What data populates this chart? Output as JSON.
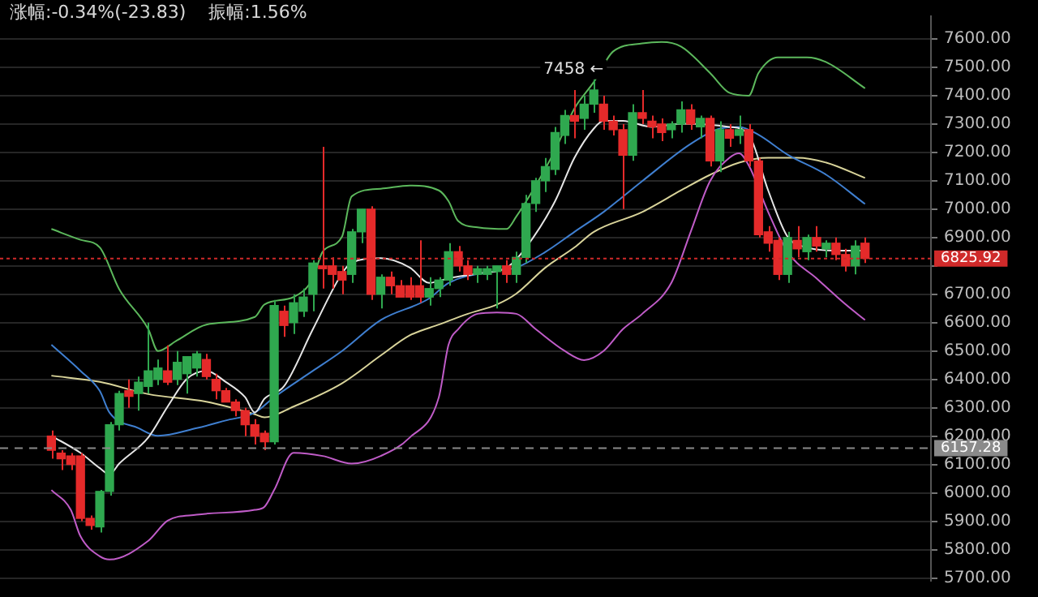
{
  "chart_data": {
    "type": "candlestick",
    "title": "涨幅:-0.34%(-23.83)",
    "subtitle": "振幅:1.56%",
    "annotations": [
      "7458 ←"
    ],
    "categories": [
      null,
      null,
      null,
      null,
      null,
      null,
      null,
      null,
      null,
      null,
      null,
      null,
      null,
      null,
      null,
      null,
      null,
      null,
      null,
      null,
      null,
      null,
      null,
      null,
      null,
      null,
      null,
      null,
      null,
      null,
      null,
      null,
      null,
      null,
      null,
      null,
      null,
      null,
      null,
      null,
      null,
      null,
      null,
      null,
      null,
      null,
      null,
      null,
      null,
      null,
      null,
      null,
      null,
      null,
      null,
      null,
      null,
      null,
      null,
      null,
      null,
      null,
      null,
      null,
      null,
      null,
      null,
      null,
      null,
      null,
      null,
      null,
      null,
      null,
      null,
      null,
      null,
      null,
      null,
      null,
      null,
      null,
      null,
      null,
      null
    ],
    "ohlc": [
      [
        6200,
        6220,
        6120,
        6150
      ],
      [
        6140,
        6150,
        6080,
        6120
      ],
      [
        6130,
        6140,
        6080,
        6100
      ],
      [
        6130,
        6140,
        5900,
        5910
      ],
      [
        5910,
        5920,
        5870,
        5885
      ],
      [
        5880,
        6010,
        5860,
        6005
      ],
      [
        6005,
        6250,
        5990,
        6240
      ],
      [
        6240,
        6360,
        6220,
        6350
      ],
      [
        6360,
        6400,
        6300,
        6340
      ],
      [
        6350,
        6410,
        6290,
        6390
      ],
      [
        6375,
        6600,
        6350,
        6430
      ],
      [
        6400,
        6470,
        6380,
        6440
      ],
      [
        6430,
        6520,
        6380,
        6390
      ],
      [
        6400,
        6500,
        6380,
        6460
      ],
      [
        6420,
        6480,
        6350,
        6480
      ],
      [
        6440,
        6500,
        6410,
        6490
      ],
      [
        6470,
        6490,
        6400,
        6410
      ],
      [
        6400,
        6420,
        6330,
        6360
      ],
      [
        6360,
        6370,
        6320,
        6320
      ],
      [
        6320,
        6330,
        6270,
        6290
      ],
      [
        6290,
        6300,
        6200,
        6240
      ],
      [
        6240,
        6260,
        6170,
        6200
      ],
      [
        6210,
        6220,
        6150,
        6180
      ],
      [
        6180,
        6680,
        6170,
        6660
      ],
      [
        6640,
        6660,
        6550,
        6590
      ],
      [
        6600,
        6700,
        6560,
        6670
      ],
      [
        6640,
        6720,
        6620,
        6690
      ],
      [
        6700,
        6820,
        6640,
        6810
      ],
      [
        6800,
        7220,
        6720,
        6790
      ],
      [
        6800,
        6830,
        6720,
        6770
      ],
      [
        6780,
        6800,
        6700,
        6750
      ],
      [
        6770,
        6930,
        6740,
        6920
      ],
      [
        6920,
        7000,
        6880,
        7000
      ],
      [
        7000,
        7010,
        6680,
        6700
      ],
      [
        6700,
        6770,
        6650,
        6760
      ],
      [
        6760,
        6780,
        6700,
        6730
      ],
      [
        6730,
        6750,
        6690,
        6690
      ],
      [
        6730,
        6760,
        6680,
        6690
      ],
      [
        6730,
        6890,
        6670,
        6690
      ],
      [
        6690,
        6760,
        6660,
        6720
      ],
      [
        6720,
        6760,
        6690,
        6750
      ],
      [
        6750,
        6880,
        6730,
        6850
      ],
      [
        6850,
        6870,
        6780,
        6800
      ],
      [
        6800,
        6820,
        6750,
        6770
      ],
      [
        6770,
        6800,
        6740,
        6790
      ],
      [
        6770,
        6800,
        6750,
        6790
      ],
      [
        6780,
        6800,
        6650,
        6800
      ],
      [
        6800,
        6820,
        6740,
        6770
      ],
      [
        6770,
        6850,
        6740,
        6830
      ],
      [
        6830,
        7050,
        6810,
        7020
      ],
      [
        7020,
        7110,
        6990,
        7100
      ],
      [
        7100,
        7180,
        7060,
        7150
      ],
      [
        7140,
        7290,
        7120,
        7270
      ],
      [
        7260,
        7350,
        7230,
        7330
      ],
      [
        7330,
        7420,
        7250,
        7310
      ],
      [
        7320,
        7400,
        7280,
        7370
      ],
      [
        7370,
        7458,
        7340,
        7420
      ],
      [
        7370,
        7400,
        7280,
        7310
      ],
      [
        7310,
        7330,
        7260,
        7280
      ],
      [
        7280,
        7300,
        7000,
        7190
      ],
      [
        7190,
        7370,
        7170,
        7340
      ],
      [
        7340,
        7420,
        7300,
        7320
      ],
      [
        7310,
        7330,
        7250,
        7290
      ],
      [
        7300,
        7320,
        7240,
        7270
      ],
      [
        7280,
        7310,
        7250,
        7300
      ],
      [
        7300,
        7380,
        7270,
        7350
      ],
      [
        7350,
        7370,
        7280,
        7300
      ],
      [
        7290,
        7330,
        7250,
        7320
      ],
      [
        7320,
        7330,
        7150,
        7170
      ],
      [
        7170,
        7310,
        7130,
        7280
      ],
      [
        7280,
        7300,
        7220,
        7250
      ],
      [
        7260,
        7330,
        7230,
        7280
      ],
      [
        7280,
        7300,
        7150,
        7170
      ],
      [
        7170,
        7180,
        6900,
        6910
      ],
      [
        6920,
        6940,
        6850,
        6880
      ],
      [
        6890,
        6900,
        6750,
        6770
      ],
      [
        6770,
        6920,
        6740,
        6900
      ],
      [
        6890,
        6940,
        6830,
        6860
      ],
      [
        6850,
        6910,
        6820,
        6900
      ],
      [
        6900,
        6940,
        6850,
        6870
      ],
      [
        6860,
        6890,
        6830,
        6880
      ],
      [
        6880,
        6900,
        6820,
        6840
      ],
      [
        6840,
        6860,
        6780,
        6800
      ],
      [
        6800,
        6890,
        6770,
        6870
      ],
      [
        6880,
        6900,
        6810,
        6826
      ]
    ],
    "series": [
      {
        "type": "line",
        "color": "#5cb85c",
        "values": [
          6930,
          null,
          null,
          6892,
          null,
          6865,
          null,
          6718,
          null,
          null,
          6577,
          6500,
          null,
          6538,
          null,
          null,
          6593,
          null,
          null,
          null,
          null,
          6620,
          6664,
          null,
          null,
          6690,
          null,
          6756,
          6850,
          null,
          6903,
          7045,
          null,
          null,
          7072,
          null,
          null,
          7083,
          null,
          null,
          7066,
          7028,
          6958,
          null,
          6936,
          null,
          null,
          6930,
          6974,
          null,
          7083,
          null,
          7208,
          null,
          7355,
          null,
          7448,
          null,
          7556,
          null,
          null,
          7584,
          null,
          7589,
          null,
          7573,
          null,
          null,
          7480,
          null,
          7410,
          null,
          7400,
          7480,
          null,
          7535,
          null,
          null,
          7535,
          null,
          7518,
          null,
          null,
          null,
          7426
        ]
      },
      {
        "type": "line",
        "color": "#e6e6e6",
        "values": [
          6201,
          null,
          null,
          6141,
          null,
          6087,
          6065,
          6103,
          null,
          null,
          6195,
          null,
          6304,
          null,
          6402,
          null,
          6430,
          null,
          6391,
          null,
          6337,
          6283,
          6332,
          null,
          6375,
          null,
          null,
          6577,
          null,
          null,
          6773,
          6811,
          null,
          null,
          6827,
          null,
          null,
          6794,
          null,
          6740,
          null,
          6756,
          null,
          null,
          6773,
          null,
          null,
          6794,
          null,
          6865,
          null,
          null,
          7028,
          null,
          7181,
          null,
          7284,
          7311,
          null,
          7311,
          null,
          null,
          7290,
          null,
          null,
          7301,
          null,
          null,
          null,
          null,
          7290,
          null,
          7262,
          null,
          7066,
          null,
          6903,
          null,
          6865,
          null,
          null,
          6854,
          null,
          null,
          6854
        ]
      },
      {
        "type": "line",
        "color": "#c05cc8",
        "values": [
          6010,
          null,
          5940,
          5847,
          null,
          5776,
          5765,
          null,
          null,
          null,
          5831,
          null,
          5902,
          null,
          null,
          5923,
          null,
          null,
          null,
          null,
          null,
          5940,
          5951,
          6010,
          null,
          6141,
          null,
          null,
          6130,
          null,
          null,
          6103,
          null,
          null,
          6130,
          null,
          null,
          6195,
          null,
          null,
          6337,
          6522,
          6577,
          null,
          6631,
          null,
          6636,
          null,
          6631,
          null,
          6577,
          null,
          null,
          6500,
          null,
          6468,
          null,
          6500,
          null,
          6577,
          null,
          6631,
          null,
          null,
          6740,
          null,
          6920,
          null,
          7099,
          null,
          7181,
          7197,
          7154,
          null,
          6990,
          null,
          6849,
          null,
          null,
          6756,
          null,
          null,
          6664,
          null,
          6609
        ]
      },
      {
        "type": "line",
        "color": "#3f7fd0",
        "values": [
          6522,
          null,
          null,
          6430,
          null,
          6359,
          6283,
          null,
          null,
          6228,
          null,
          6201,
          null,
          null,
          null,
          6228,
          null,
          null,
          6255,
          null,
          null,
          6283,
          null,
          6337,
          null,
          null,
          null,
          6430,
          null,
          null,
          6500,
          null,
          null,
          null,
          6609,
          null,
          null,
          null,
          null,
          6685,
          null,
          6740,
          null,
          null,
          null,
          null,
          6783,
          null,
          6794,
          null,
          null,
          6849,
          null,
          null,
          6920,
          null,
          null,
          6990,
          null,
          null,
          null,
          7099,
          null,
          null,
          null,
          null,
          7230,
          null,
          null,
          7284,
          null,
          7290,
          null,
          7262,
          null,
          null,
          7192,
          null,
          null,
          null,
          7121,
          null,
          null,
          null,
          7018
        ]
      },
      {
        "type": "line",
        "color": "#d9d49a",
        "values": [
          6413,
          null,
          null,
          null,
          null,
          6391,
          null,
          null,
          null,
          null,
          6348,
          null,
          null,
          null,
          null,
          null,
          6321,
          null,
          null,
          null,
          null,
          6277,
          6266,
          null,
          null,
          6304,
          null,
          null,
          null,
          null,
          6386,
          null,
          null,
          null,
          6484,
          null,
          null,
          6555,
          null,
          null,
          6593,
          null,
          null,
          6631,
          null,
          null,
          6664,
          null,
          6702,
          null,
          null,
          6794,
          null,
          null,
          6865,
          null,
          6920,
          null,
          null,
          null,
          null,
          6990,
          null,
          null,
          null,
          7066,
          null,
          null,
          7121,
          null,
          null,
          7164,
          null,
          null,
          7181,
          null,
          null,
          7181,
          null,
          null,
          7164,
          null,
          null,
          null,
          7110
        ]
      }
    ],
    "ylim": [
      5690,
      7680
    ],
    "yticks": [
      {
        "value": 5700,
        "label": "5700.00"
      },
      {
        "value": 5800,
        "label": "5800.00"
      },
      {
        "value": 5900,
        "label": "5900.00"
      },
      {
        "value": 6000,
        "label": "6000.00"
      },
      {
        "value": 6100,
        "label": "6100.00"
      },
      {
        "value": 6200,
        "label": "6200.00"
      },
      {
        "value": 6300,
        "label": "6300.00"
      },
      {
        "value": 6400,
        "label": "6400.00"
      },
      {
        "value": 6500,
        "label": "6500.00"
      },
      {
        "value": 6600,
        "label": "6600.00"
      },
      {
        "value": 6700,
        "label": "6700.00"
      },
      {
        "value": 6800,
        "label": null
      },
      {
        "value": 6900,
        "label": "6900.00"
      },
      {
        "value": 7000,
        "label": "7000.00"
      },
      {
        "value": 7100,
        "label": "7100.00"
      },
      {
        "value": 7200,
        "label": "7200.00"
      },
      {
        "value": 7300,
        "label": "7300.00"
      },
      {
        "value": 7400,
        "label": "7400.00"
      },
      {
        "value": 7500,
        "label": "7500.00"
      },
      {
        "value": 7600,
        "label": "7600.00"
      }
    ],
    "ref_lines": [
      {
        "axis": "y",
        "value": 6825.92,
        "label": "6825.92",
        "color": "#d02a2a",
        "line_style": "dotted"
      },
      {
        "axis": "y",
        "value": 6157.28,
        "label": "6157.28",
        "color": "#8a8a8a",
        "line_style": "dashed"
      }
    ],
    "grid": "y",
    "tick_labels": "y"
  }
}
